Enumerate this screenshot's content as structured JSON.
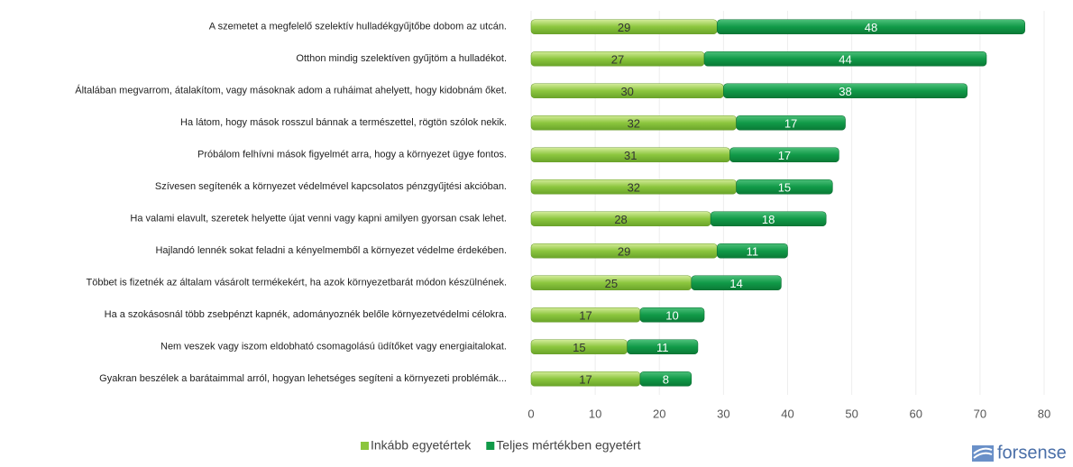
{
  "chart_data": {
    "type": "bar",
    "orientation": "horizontal",
    "stacked": true,
    "categories": [
      "A szemetet a megfelelő szelektív hulladékgyűjtőbe dobom az utcán.",
      "Otthon mindig szelektíven gyűjtöm a hulladékot.",
      "Általában megvarrom, átalakítom, vagy másoknak adom a ruháimat ahelyett, hogy kidobnám őket.",
      "Ha látom, hogy mások rosszul bánnak a természettel, rögtön szólok nekik.",
      "Próbálom felhívni mások figyelmét arra, hogy a környezet ügye fontos.",
      "Szívesen segítenék a környezet védelmével kapcsolatos pénzgyűjtési akcióban.",
      "Ha valami elavult, szeretek helyette újat venni vagy kapni amilyen gyorsan csak lehet.",
      "Hajlandó lennék sokat feladni a kényelmemből a környezet védelme érdekében.",
      "Többet is fizetnék az általam vásárolt termékekért, ha azok környezetbarát módon készülnének.",
      "Ha a szokásosnál több zsebpénzt kapnék, adományoznék belőle környezetvédelmi célokra.",
      "Nem veszek vagy iszom eldobható csomagolású üdítőket vagy energiaitalokat.",
      "Gyakran beszélek a barátaimmal arról, hogyan lehetséges segíteni a környezeti problémák..."
    ],
    "series": [
      {
        "name": "Inkább egyetértek",
        "color": "#8cc63e",
        "values": [
          29,
          27,
          30,
          32,
          31,
          32,
          28,
          29,
          25,
          17,
          15,
          17
        ]
      },
      {
        "name": "Teljes mértékben egyetért",
        "color": "#119a48",
        "values": [
          48,
          44,
          38,
          17,
          17,
          15,
          18,
          11,
          14,
          10,
          11,
          8
        ]
      }
    ],
    "xlim": [
      0,
      80
    ],
    "xticks": [
      0,
      10,
      20,
      30,
      40,
      50,
      60,
      70,
      80
    ],
    "grid": true,
    "legend": "bottom"
  },
  "brand": "forsense"
}
